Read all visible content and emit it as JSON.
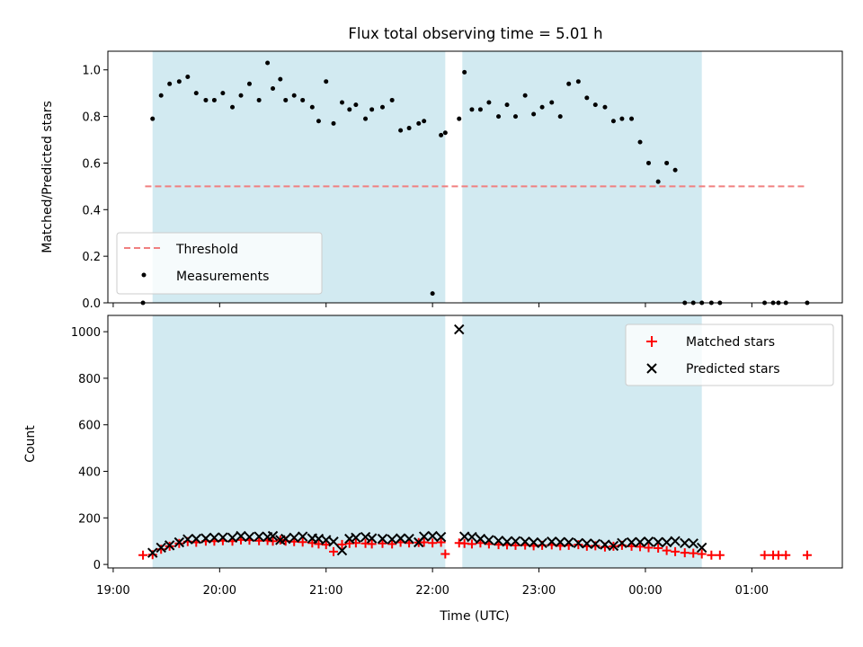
{
  "chart_data": {
    "type": "scatter",
    "title": "Flux total observing time = 5.01 h",
    "xlabel": "Time (UTC)",
    "x_tick_labels": [
      "19:00",
      "20:00",
      "21:00",
      "22:00",
      "23:00",
      "00:00",
      "01:00"
    ],
    "x_tick_hours": [
      19,
      20,
      21,
      22,
      23,
      24,
      25
    ],
    "xlim_hours": [
      18.95,
      25.85
    ],
    "shaded_intervals_hours": [
      [
        19.37,
        22.12
      ],
      [
        22.28,
        24.53
      ]
    ],
    "colors": {
      "shade": "#add8e6",
      "threshold": "#f08080",
      "measurements": "#000000",
      "matched": "#ff0000",
      "predicted": "#000000"
    },
    "panels": [
      {
        "ylabel": "Matched/Predicted stars",
        "ylim": [
          0,
          1.08
        ],
        "y_ticks": [
          0,
          0.2,
          0.4,
          0.6,
          0.8,
          1.0
        ],
        "y_tick_labels": [
          "0.0",
          "0.2",
          "0.4",
          "0.6",
          "0.8",
          "1.0"
        ],
        "legend_position": "lower-left",
        "threshold": {
          "name": "Threshold",
          "value": 0.5,
          "x_range_hours": [
            19.3,
            25.52
          ]
        },
        "measurements": {
          "name": "Measurements",
          "x": [
            19.28,
            19.37,
            19.45,
            19.53,
            19.62,
            19.7,
            19.78,
            19.87,
            19.95,
            20.03,
            20.12,
            20.2,
            20.28,
            20.37,
            20.45,
            20.5,
            20.57,
            20.62,
            20.7,
            20.78,
            20.87,
            20.93,
            21.0,
            21.07,
            21.15,
            21.22,
            21.28,
            21.37,
            21.43,
            21.53,
            21.62,
            21.7,
            21.78,
            21.87,
            21.92,
            22.0,
            22.08,
            22.12,
            22.25,
            22.3,
            22.37,
            22.45,
            22.53,
            22.62,
            22.7,
            22.78,
            22.87,
            22.95,
            23.03,
            23.12,
            23.2,
            23.28,
            23.37,
            23.45,
            23.53,
            23.62,
            23.7,
            23.78,
            23.87,
            23.95,
            24.03,
            24.12,
            24.2,
            24.28,
            24.37,
            24.45,
            24.53,
            24.62,
            24.7,
            25.12,
            25.2,
            25.25,
            25.32,
            25.52
          ],
          "y": [
            0.0,
            0.79,
            0.89,
            0.94,
            0.95,
            0.97,
            0.9,
            0.87,
            0.87,
            0.9,
            0.84,
            0.89,
            0.94,
            0.87,
            1.03,
            0.92,
            0.96,
            0.87,
            0.89,
            0.87,
            0.84,
            0.78,
            0.95,
            0.77,
            0.86,
            0.83,
            0.85,
            0.79,
            0.83,
            0.84,
            0.87,
            0.74,
            0.75,
            0.77,
            0.78,
            0.04,
            0.72,
            0.73,
            0.79,
            0.99,
            0.83,
            0.83,
            0.86,
            0.8,
            0.85,
            0.8,
            0.89,
            0.81,
            0.84,
            0.86,
            0.8,
            0.94,
            0.95,
            0.88,
            0.85,
            0.84,
            0.78,
            0.79,
            0.79,
            0.69,
            0.6,
            0.52,
            0.6,
            0.57,
            0.0,
            0.0,
            0.0,
            0.0,
            0.0,
            0.0,
            0.0,
            0.0,
            0.0,
            0.0
          ]
        }
      },
      {
        "ylabel": "Count",
        "ylim": [
          -15,
          1070
        ],
        "y_ticks": [
          0,
          200,
          400,
          600,
          800,
          1000
        ],
        "y_tick_labels": [
          "0",
          "200",
          "400",
          "600",
          "800",
          "1000"
        ],
        "legend_position": "upper-right",
        "matched": {
          "name": "Matched stars",
          "x": [
            19.28,
            19.37,
            19.45,
            19.53,
            19.62,
            19.7,
            19.78,
            19.87,
            19.95,
            20.03,
            20.12,
            20.2,
            20.28,
            20.37,
            20.45,
            20.5,
            20.57,
            20.62,
            20.7,
            20.78,
            20.87,
            20.93,
            21.0,
            21.07,
            21.15,
            21.22,
            21.28,
            21.37,
            21.43,
            21.53,
            21.62,
            21.7,
            21.78,
            21.87,
            21.92,
            22.0,
            22.08,
            22.12,
            22.25,
            22.3,
            22.37,
            22.45,
            22.53,
            22.62,
            22.7,
            22.78,
            22.87,
            22.95,
            23.03,
            23.12,
            23.2,
            23.28,
            23.37,
            23.45,
            23.53,
            23.62,
            23.7,
            23.78,
            23.87,
            23.95,
            24.03,
            24.12,
            24.2,
            24.28,
            24.37,
            24.45,
            24.53,
            24.62,
            24.7,
            25.12,
            25.2,
            25.25,
            25.32,
            25.52
          ],
          "y": [
            40,
            42,
            65,
            78,
            90,
            98,
            95,
            100,
            100,
            102,
            100,
            105,
            104,
            102,
            103,
            100,
            105,
            100,
            98,
            96,
            92,
            88,
            85,
            55,
            86,
            90,
            92,
            90,
            88,
            90,
            88,
            95,
            92,
            94,
            95,
            92,
            95,
            45,
            92,
            90,
            88,
            92,
            88,
            85,
            84,
            82,
            83,
            80,
            82,
            84,
            80,
            82,
            85,
            78,
            80,
            75,
            78,
            82,
            78,
            76,
            72,
            70,
            60,
            55,
            50,
            48,
            45,
            40,
            40,
            40,
            40,
            40,
            40,
            40
          ]
        },
        "predicted": {
          "name": "Predicted stars",
          "x": [
            19.37,
            19.45,
            19.53,
            19.62,
            19.7,
            19.78,
            19.87,
            19.95,
            20.03,
            20.12,
            20.2,
            20.28,
            20.37,
            20.45,
            20.5,
            20.57,
            20.62,
            20.7,
            20.78,
            20.87,
            20.93,
            21.0,
            21.07,
            21.15,
            21.22,
            21.28,
            21.37,
            21.43,
            21.53,
            21.62,
            21.7,
            21.78,
            21.87,
            21.92,
            22.0,
            22.08,
            22.25,
            22.3,
            22.37,
            22.45,
            22.53,
            22.62,
            22.7,
            22.78,
            22.87,
            22.95,
            23.03,
            23.12,
            23.2,
            23.28,
            23.37,
            23.45,
            23.53,
            23.62,
            23.7,
            23.78,
            23.87,
            23.95,
            24.03,
            24.12,
            24.2,
            24.28,
            24.37,
            24.45,
            24.53
          ],
          "y": [
            50,
            72,
            82,
            95,
            108,
            110,
            112,
            115,
            116,
            115,
            122,
            118,
            120,
            118,
            122,
            105,
            110,
            115,
            120,
            112,
            110,
            105,
            98,
            60,
            110,
            115,
            118,
            112,
            110,
            108,
            112,
            110,
            95,
            120,
            122,
            118,
            1010,
            120,
            118,
            110,
            105,
            102,
            98,
            100,
            98,
            95,
            92,
            98,
            96,
            95,
            92,
            90,
            88,
            85,
            80,
            92,
            95,
            96,
            98,
            96,
            95,
            100,
            92,
            90,
            72
          ]
        }
      }
    ]
  }
}
